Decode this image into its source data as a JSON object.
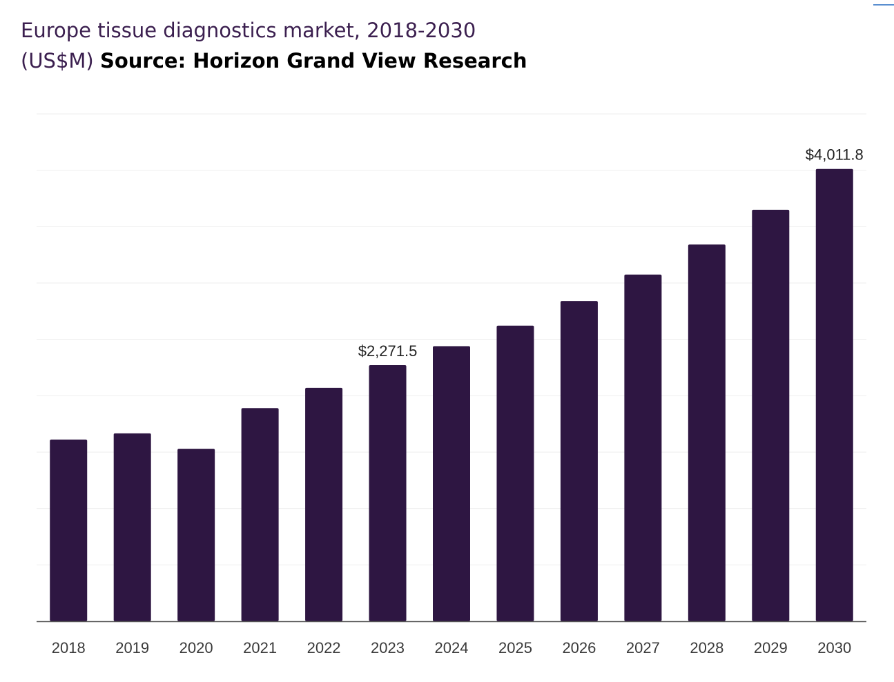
{
  "title": {
    "line1": "Europe tissue diagnostics market, 2018-2030",
    "line2_unit": "(US$M)",
    "line2_source": "Source: Horizon Grand View Research"
  },
  "colors": {
    "bar": "#2e1642",
    "title": "#3b1f4f",
    "grid": "#eeeeee",
    "axis": "#555555"
  },
  "chart_data": {
    "type": "bar",
    "title": "Europe tissue diagnostics market, 2018-2030 (US$M)",
    "categories": [
      "2018",
      "2019",
      "2020",
      "2021",
      "2022",
      "2023",
      "2024",
      "2025",
      "2026",
      "2027",
      "2028",
      "2029",
      "2030"
    ],
    "series": [
      {
        "values": [
          1612,
          1667,
          1530,
          1890,
          2070,
          2271.5,
          2440,
          2622,
          2840,
          3075,
          3341,
          3650,
          4011.8
        ]
      }
    ],
    "data_labels": [
      {
        "category": "2023",
        "text": "$2,271.5"
      },
      {
        "category": "2030",
        "text": "$4,011.8"
      }
    ],
    "ylim": [
      0,
      4500
    ],
    "grid": true,
    "xlabel": "",
    "ylabel": ""
  }
}
